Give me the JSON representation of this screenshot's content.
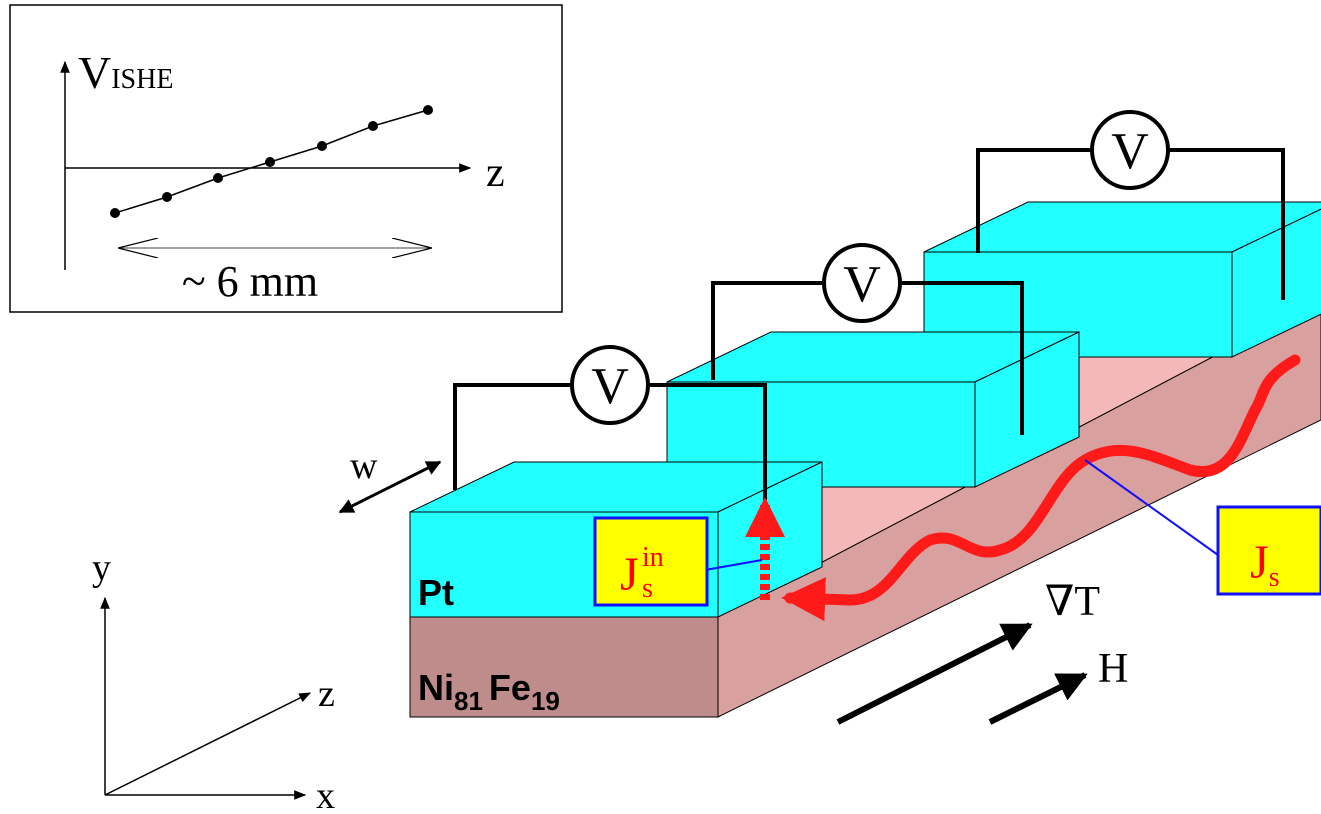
{
  "inset": {
    "y_label": "V",
    "y_label_sub": "ISHE",
    "x_label": "z",
    "span": "~ 6 mm"
  },
  "voltmeters": [
    "V",
    "V",
    "V"
  ],
  "width_label": "w",
  "pt_label": "Pt",
  "nife_label": {
    "ni": "Ni",
    "ni_sub": "81",
    "fe": "Fe",
    "fe_sub": "19"
  },
  "js_in_label": {
    "main": "J",
    "sub": "s",
    "sup": "in"
  },
  "js_label": {
    "main": "J",
    "sub": "s"
  },
  "gradient_label": "∇T",
  "field_label": "H",
  "axes": {
    "y": "y",
    "z": "z",
    "x": "x"
  }
}
